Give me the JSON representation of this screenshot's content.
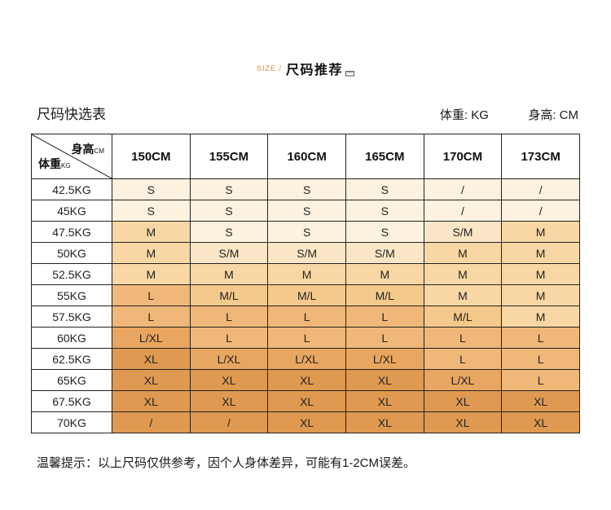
{
  "header": {
    "size_label": "SIZE /",
    "title": "尺码推荐"
  },
  "subheader": {
    "table_title": "尺码快选表",
    "unit_weight": "体重: KG",
    "unit_height": "身高: CM"
  },
  "footer": {
    "note": "温馨提示：以上尺码仅供参考，因个人身体差异，可能有1-2CM误差。"
  },
  "colors": {
    "s": "#fdf2df",
    "sm": "#fae6c6",
    "m": "#f8d7a4",
    "ml": "#f4c98c",
    "l": "#f0b878",
    "lxl": "#e9a660",
    "xl": "#df9950",
    "accent": "#e0873f",
    "border": "#222222"
  },
  "chart_data": {
    "type": "table",
    "title": "尺码快选表",
    "corner": {
      "top_text": "身高",
      "top_unit": "CM",
      "bottom_text": "体重",
      "bottom_unit": "KG"
    },
    "columns": [
      "150CM",
      "155CM",
      "160CM",
      "165CM",
      "170CM",
      "173CM"
    ],
    "rows": [
      {
        "label": "42.5KG",
        "values": [
          "S",
          "S",
          "S",
          "S",
          "/",
          "/"
        ],
        "colors": [
          "s",
          "s",
          "s",
          "s",
          "s",
          "s"
        ]
      },
      {
        "label": "45KG",
        "values": [
          "S",
          "S",
          "S",
          "S",
          "/",
          "/"
        ],
        "colors": [
          "s",
          "s",
          "s",
          "s",
          "s",
          "s"
        ]
      },
      {
        "label": "47.5KG",
        "values": [
          "M",
          "S",
          "S",
          "S",
          "S/M",
          "M"
        ],
        "colors": [
          "m",
          "s",
          "s",
          "s",
          "sm",
          "m"
        ]
      },
      {
        "label": "50KG",
        "values": [
          "M",
          "S/M",
          "S/M",
          "S/M",
          "M",
          "M"
        ],
        "colors": [
          "m",
          "sm",
          "sm",
          "sm",
          "m",
          "m"
        ]
      },
      {
        "label": "52.5KG",
        "values": [
          "M",
          "M",
          "M",
          "M",
          "M",
          "M"
        ],
        "colors": [
          "m",
          "m",
          "m",
          "m",
          "m",
          "m"
        ]
      },
      {
        "label": "55KG",
        "values": [
          "L",
          "M/L",
          "M/L",
          "M/L",
          "M",
          "M"
        ],
        "colors": [
          "l",
          "ml",
          "ml",
          "ml",
          "m",
          "m"
        ]
      },
      {
        "label": "57.5KG",
        "values": [
          "L",
          "L",
          "L",
          "L",
          "M/L",
          "M"
        ],
        "colors": [
          "l",
          "l",
          "l",
          "l",
          "ml",
          "m"
        ]
      },
      {
        "label": "60KG",
        "values": [
          "L/XL",
          "L",
          "L",
          "L",
          "L",
          "L"
        ],
        "colors": [
          "lxl",
          "l",
          "l",
          "l",
          "l",
          "l"
        ]
      },
      {
        "label": "62.5KG",
        "values": [
          "XL",
          "L/XL",
          "L/XL",
          "L/XL",
          "L",
          "L"
        ],
        "colors": [
          "xl",
          "lxl",
          "lxl",
          "lxl",
          "l",
          "l"
        ]
      },
      {
        "label": "65KG",
        "values": [
          "XL",
          "XL",
          "XL",
          "XL",
          "L/XL",
          "L"
        ],
        "colors": [
          "xl",
          "xl",
          "xl",
          "xl",
          "lxl",
          "l"
        ]
      },
      {
        "label": "67.5KG",
        "values": [
          "XL",
          "XL",
          "XL",
          "XL",
          "XL",
          "XL"
        ],
        "colors": [
          "xl",
          "xl",
          "xl",
          "xl",
          "xl",
          "xl"
        ]
      },
      {
        "label": "70KG",
        "values": [
          "/",
          "/",
          "XL",
          "XL",
          "XL",
          "XL"
        ],
        "colors": [
          "xl",
          "xl",
          "xl",
          "xl",
          "xl",
          "xl"
        ]
      }
    ]
  }
}
